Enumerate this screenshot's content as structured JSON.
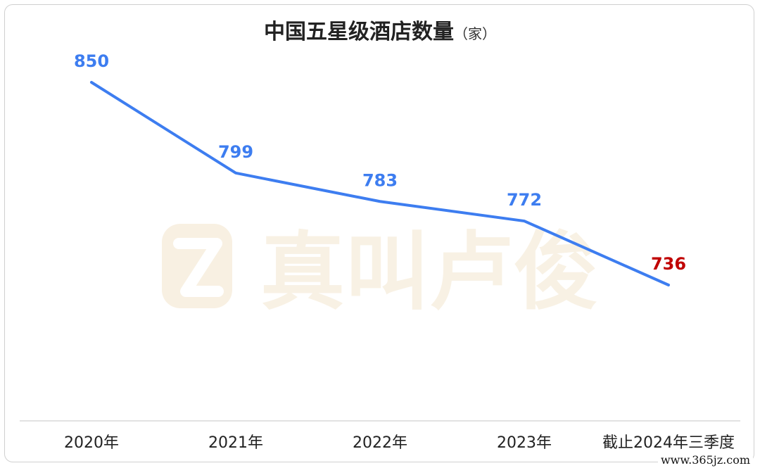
{
  "site_mark": "www.365jz.com",
  "watermark": {
    "icon": "z-logo-icon",
    "text": "真叫卢俊"
  },
  "chart_data": {
    "type": "line",
    "title": "中国五星级酒店数量",
    "title_unit": "（家）",
    "categories": [
      "2020年",
      "2021年",
      "2022年",
      "2023年",
      "截止2024年三季度"
    ],
    "series": [
      {
        "values": [
          850,
          799,
          783,
          772,
          736
        ]
      }
    ],
    "data_labels": [
      "850",
      "799",
      "783",
      "772",
      "736"
    ],
    "colors": {
      "line": "#3d7df0",
      "label": "#3d7df0",
      "highlight_label": "#c00000",
      "drop_line": "#b7cdf3",
      "axis": "#d9d9d9"
    },
    "highlight_index": 4,
    "grid": false,
    "legend": "none"
  }
}
